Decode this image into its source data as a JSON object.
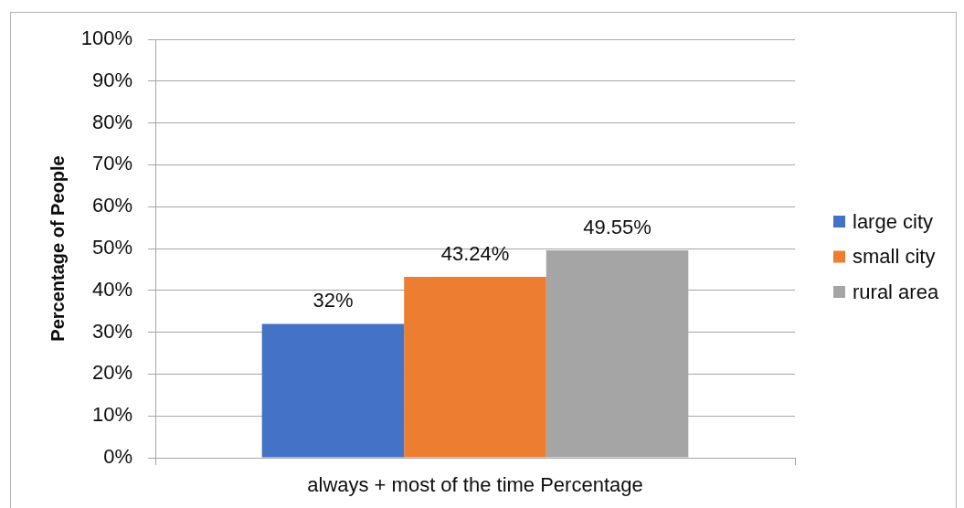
{
  "chart_data": {
    "type": "bar",
    "ylabel": "Percentage of People",
    "categories": [
      "always + most of the time Percentage"
    ],
    "series": [
      {
        "name": "large city",
        "color": "#4472c4",
        "values": [
          32
        ],
        "value_labels": [
          "32%"
        ]
      },
      {
        "name": "small city",
        "color": "#ed7d31",
        "values": [
          43.24
        ],
        "value_labels": [
          "43.24%"
        ]
      },
      {
        "name": "rural area",
        "color": "#a5a5a5",
        "values": [
          49.55
        ],
        "value_labels": [
          "49.55%"
        ]
      }
    ],
    "ylim": [
      0,
      100
    ],
    "yticks": [
      {
        "value": 0,
        "label": "0%"
      },
      {
        "value": 10,
        "label": "10%"
      },
      {
        "value": 20,
        "label": "20%"
      },
      {
        "value": 30,
        "label": "30%"
      },
      {
        "value": 40,
        "label": "40%"
      },
      {
        "value": 50,
        "label": "50%"
      },
      {
        "value": 60,
        "label": "60%"
      },
      {
        "value": 70,
        "label": "70%"
      },
      {
        "value": 80,
        "label": "80%"
      },
      {
        "value": 90,
        "label": "90%"
      },
      {
        "value": 100,
        "label": "100%"
      }
    ],
    "grid": "y",
    "legend": "right"
  }
}
